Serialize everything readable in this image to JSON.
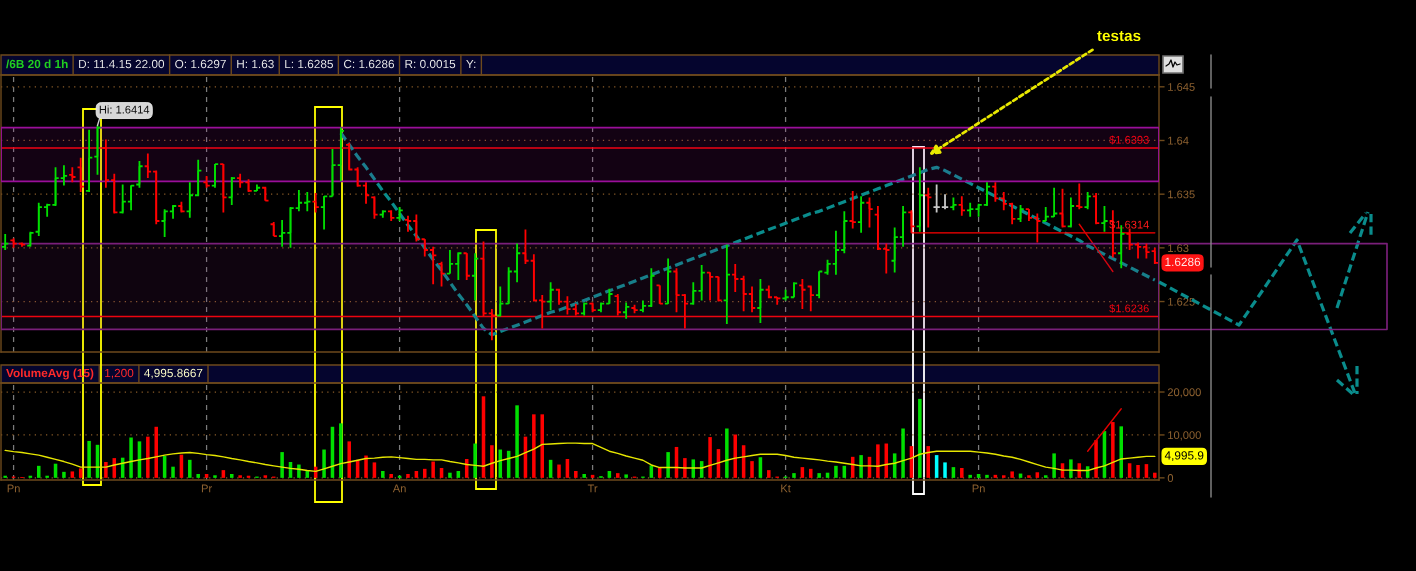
{
  "chart_data": [
    {
      "type": "candlestick",
      "title": "/6B 20 d 1h",
      "annotations": [
        "D: 11.4.15 22.00",
        "O: 1.6297",
        "H: 1.63",
        "L: 1.6285",
        "C: 1.6286",
        "R: 0.0015",
        "Y:",
        {
          "text": "Hi: 1.6414",
          "y": 1.6414
        },
        "1.6286",
        {
          "text": "$1.6314",
          "y": 1.6314
        },
        "testas"
      ],
      "categories": [
        null,
        null,
        null,
        null,
        null,
        null,
        null,
        null,
        null,
        null,
        null,
        null,
        null,
        null,
        null,
        null,
        null,
        null,
        null,
        null,
        null,
        null,
        null,
        null,
        null,
        null,
        null,
        null,
        null,
        null,
        null,
        null,
        null,
        null,
        null,
        null,
        null,
        null,
        null,
        null,
        null,
        null,
        null,
        null,
        null,
        null,
        null,
        null,
        null,
        null,
        null,
        null,
        null,
        null,
        null,
        null,
        null,
        null,
        null,
        null,
        null,
        null,
        null,
        null,
        null,
        null,
        null,
        null,
        null,
        null,
        null,
        null,
        null,
        null,
        null,
        null,
        null,
        null,
        null,
        null,
        null,
        null,
        null,
        null,
        null,
        null,
        null,
        null,
        null,
        null,
        null,
        null,
        null,
        null,
        null,
        null,
        null,
        null,
        null,
        null,
        null,
        null,
        null,
        null,
        null,
        null,
        null,
        null,
        null,
        null,
        null,
        null,
        null,
        null,
        null,
        null,
        null,
        null,
        null,
        null,
        null,
        null,
        null,
        null,
        null,
        null,
        null,
        null,
        null,
        null,
        null,
        null,
        null,
        null,
        null,
        null,
        null,
        null
      ],
      "ohlc": [
        [
          1.6301,
          1.6313,
          1.6298,
          1.6304
        ],
        [
          1.6307,
          1.6309,
          1.63,
          1.6304
        ],
        [
          1.6304,
          1.6305,
          1.6301,
          1.6303
        ],
        [
          1.6302,
          1.6315,
          1.6301,
          1.6314
        ],
        [
          1.6315,
          1.6342,
          1.6311,
          1.6338
        ],
        [
          1.6338,
          1.6341,
          1.6329,
          1.634
        ],
        [
          1.634,
          1.6375,
          1.6339,
          1.6365
        ],
        [
          1.6365,
          1.6377,
          1.6358,
          1.6367
        ],
        [
          1.6368,
          1.6375,
          1.6361,
          1.6366
        ],
        [
          1.6375,
          1.6384,
          1.6352,
          1.6357
        ],
        [
          1.6353,
          1.641,
          1.6352,
          1.6384
        ],
        [
          1.6385,
          1.6414,
          1.6368,
          1.6412
        ],
        [
          1.6393,
          1.6401,
          1.6356,
          1.6363
        ],
        [
          1.6363,
          1.6369,
          1.6332,
          1.6333
        ],
        [
          1.6333,
          1.6359,
          1.6332,
          1.6343
        ],
        [
          1.6343,
          1.6358,
          1.6335,
          1.6358
        ],
        [
          1.6359,
          1.6381,
          1.6356,
          1.6376
        ],
        [
          1.6376,
          1.6388,
          1.6365,
          1.6371
        ],
        [
          1.6371,
          1.6372,
          1.6322,
          1.6325
        ],
        [
          1.6325,
          1.6336,
          1.631,
          1.6334
        ],
        [
          1.6334,
          1.634,
          1.6327,
          1.6339
        ],
        [
          1.6339,
          1.6343,
          1.6333,
          1.6334
        ],
        [
          1.6334,
          1.6361,
          1.6328,
          1.6349
        ],
        [
          1.6349,
          1.6382,
          1.6348,
          1.6372
        ],
        [
          1.6361,
          1.6367,
          1.6356,
          1.6358
        ],
        [
          1.6358,
          1.6378,
          1.6356,
          1.6378
        ],
        [
          1.6378,
          1.6378,
          1.6333,
          1.6347
        ],
        [
          1.6347,
          1.6366,
          1.634,
          1.6365
        ],
        [
          1.6365,
          1.6369,
          1.6356,
          1.6361
        ],
        [
          1.6361,
          1.6364,
          1.6352,
          1.6353
        ],
        [
          1.6353,
          1.6359,
          1.6353,
          1.6356
        ],
        [
          1.6356,
          1.6357,
          1.6344,
          1.6344
        ],
        [
          1.6322,
          1.6324,
          1.6311,
          1.6311
        ],
        [
          1.6311,
          1.6326,
          1.6301,
          1.6314
        ],
        [
          1.6314,
          1.6338,
          1.63,
          1.6337
        ],
        [
          1.6337,
          1.6354,
          1.6334,
          1.6342
        ],
        [
          1.6342,
          1.6352,
          1.6334,
          1.6343
        ],
        [
          1.6343,
          1.6351,
          1.6333,
          1.6338
        ],
        [
          1.6338,
          1.6348,
          1.6317,
          1.6348
        ],
        [
          1.6348,
          1.6392,
          1.6348,
          1.6377
        ],
        [
          1.6377,
          1.6412,
          1.6362,
          1.6409
        ],
        [
          1.6396,
          1.6398,
          1.6372,
          1.6373
        ],
        [
          1.6373,
          1.6375,
          1.6357,
          1.6358
        ],
        [
          1.6358,
          1.6361,
          1.6341,
          1.6349
        ],
        [
          1.6347,
          1.6348,
          1.6327,
          1.6331
        ],
        [
          1.6331,
          1.6335,
          1.6328,
          1.6334
        ],
        [
          1.6334,
          1.6335,
          1.6325,
          1.6328
        ],
        [
          1.6328,
          1.6338,
          1.6325,
          1.6335
        ],
        [
          1.6326,
          1.633,
          1.6315,
          1.6325
        ],
        [
          1.6325,
          1.6331,
          1.6306,
          1.6308
        ],
        [
          1.6308,
          1.6308,
          1.6292,
          1.6298
        ],
        [
          1.6298,
          1.6301,
          1.6266,
          1.6293
        ],
        [
          1.6285,
          1.6287,
          1.6264,
          1.6276
        ],
        [
          1.6276,
          1.6298,
          1.6276,
          1.6285
        ],
        [
          1.6285,
          1.6296,
          1.627,
          1.6295
        ],
        [
          1.6295,
          1.6295,
          1.627,
          1.6274
        ],
        [
          1.6274,
          1.6295,
          1.6251,
          1.629
        ],
        [
          1.629,
          1.6306,
          1.6236,
          1.6239
        ],
        [
          1.6239,
          1.6243,
          1.6214,
          1.6237
        ],
        [
          1.6237,
          1.6264,
          1.6236,
          1.6248
        ],
        [
          1.6248,
          1.6282,
          1.6248,
          1.6278
        ],
        [
          1.6278,
          1.6304,
          1.6268,
          1.6295
        ],
        [
          1.6295,
          1.6317,
          1.6285,
          1.6288
        ],
        [
          1.6288,
          1.6294,
          1.625,
          1.6251
        ],
        [
          1.6251,
          1.6256,
          1.6225,
          1.625
        ],
        [
          1.625,
          1.6268,
          1.6242,
          1.6261
        ],
        [
          1.6261,
          1.6262,
          1.6247,
          1.625
        ],
        [
          1.625,
          1.6255,
          1.6238,
          1.6243
        ],
        [
          1.6243,
          1.6248,
          1.6237,
          1.6239
        ],
        [
          1.6239,
          1.6249,
          1.6237,
          1.6248
        ],
        [
          1.6248,
          1.6249,
          1.624,
          1.6242
        ],
        [
          1.6242,
          1.6249,
          1.624,
          1.6248
        ],
        [
          1.6248,
          1.6262,
          1.6248,
          1.6257
        ],
        [
          1.6255,
          1.6257,
          1.6237,
          1.624
        ],
        [
          1.624,
          1.6249,
          1.6234,
          1.6245
        ],
        [
          1.6244,
          1.6247,
          1.6239,
          1.6242
        ],
        [
          1.6242,
          1.6251,
          1.624,
          1.6246
        ],
        [
          1.6246,
          1.6281,
          1.6245,
          1.6274
        ],
        [
          1.6265,
          1.6265,
          1.6248,
          1.6248
        ],
        [
          1.6248,
          1.629,
          1.6248,
          1.6278
        ],
        [
          1.6278,
          1.6281,
          1.624,
          1.6256
        ],
        [
          1.6256,
          1.6257,
          1.6225,
          1.6248
        ],
        [
          1.6248,
          1.6268,
          1.6247,
          1.626
        ],
        [
          1.626,
          1.6284,
          1.6251,
          1.6277
        ],
        [
          1.6277,
          1.6277,
          1.6251,
          1.6273
        ],
        [
          1.6273,
          1.6273,
          1.625,
          1.6251
        ],
        [
          1.6251,
          1.6303,
          1.6229,
          1.6275
        ],
        [
          1.6275,
          1.6285,
          1.6259,
          1.6271
        ],
        [
          1.6271,
          1.6274,
          1.6241,
          1.6257
        ],
        [
          1.6257,
          1.6264,
          1.624,
          1.6244
        ],
        [
          1.6244,
          1.6271,
          1.623,
          1.6261
        ],
        [
          1.6261,
          1.6265,
          1.6253,
          1.6254
        ],
        [
          1.6254,
          1.6254,
          1.6247,
          1.6253
        ],
        [
          1.6253,
          1.6261,
          1.6251,
          1.6254
        ],
        [
          1.6254,
          1.6268,
          1.6254,
          1.6267
        ],
        [
          1.6265,
          1.6271,
          1.6243,
          1.6261
        ],
        [
          1.6264,
          1.6265,
          1.6241,
          1.6256
        ],
        [
          1.6256,
          1.6278,
          1.6253,
          1.6278
        ],
        [
          1.6277,
          1.6289,
          1.6275,
          1.6285
        ],
        [
          1.6285,
          1.6316,
          1.6275,
          1.6298
        ],
        [
          1.6298,
          1.6334,
          1.6295,
          1.6325
        ],
        [
          1.6325,
          1.6353,
          1.6318,
          1.6324
        ],
        [
          1.6324,
          1.6348,
          1.6314,
          1.6342
        ],
        [
          1.6342,
          1.6347,
          1.6319,
          1.6336
        ],
        [
          1.6331,
          1.6339,
          1.6298,
          1.6299
        ],
        [
          1.6299,
          1.6304,
          1.6276,
          1.6298
        ],
        [
          1.6288,
          1.6319,
          1.6277,
          1.631
        ],
        [
          1.631,
          1.6339,
          1.6301,
          1.6333
        ],
        [
          1.6333,
          1.6335,
          1.6314,
          1.632
        ],
        [
          1.632,
          1.6375,
          1.6315,
          1.6349
        ],
        [
          1.6349,
          1.6356,
          1.6319,
          1.6347
        ],
        [
          1.6338,
          1.6359,
          1.6333,
          1.6338
        ],
        [
          1.6338,
          1.635,
          1.6336,
          1.6338
        ],
        [
          1.6338,
          1.6347,
          1.6335,
          1.634
        ],
        [
          1.634,
          1.6348,
          1.633,
          1.6335
        ],
        [
          1.6335,
          1.6342,
          1.6329,
          1.6336
        ],
        [
          1.6336,
          1.6341,
          1.6329,
          1.634
        ],
        [
          1.634,
          1.6361,
          1.6339,
          1.6357
        ],
        [
          1.6357,
          1.6361,
          1.6343,
          1.6346
        ],
        [
          1.6346,
          1.6352,
          1.6335,
          1.6341
        ],
        [
          1.6341,
          1.6342,
          1.6322,
          1.6327
        ],
        [
          1.6327,
          1.634,
          1.6324,
          1.6336
        ],
        [
          1.6336,
          1.6336,
          1.6325,
          1.6328
        ],
        [
          1.6328,
          1.6332,
          1.6305,
          1.6325
        ],
        [
          1.6325,
          1.6338,
          1.6325,
          1.6329
        ],
        [
          1.6329,
          1.6356,
          1.6329,
          1.6332
        ],
        [
          1.6332,
          1.6355,
          1.6319,
          1.632
        ],
        [
          1.632,
          1.6347,
          1.6319,
          1.6339
        ],
        [
          1.6339,
          1.636,
          1.6336,
          1.6338
        ],
        [
          1.6338,
          1.6352,
          1.6336,
          1.6348
        ],
        [
          1.6348,
          1.6351,
          1.6322,
          1.6323
        ],
        [
          1.6323,
          1.6339,
          1.6315,
          1.6325
        ],
        [
          1.6325,
          1.6335,
          1.6291,
          1.6295
        ],
        [
          1.6295,
          1.6321,
          1.6281,
          1.6313
        ],
        [
          1.6313,
          1.6318,
          1.6298,
          1.6303
        ],
        [
          1.6303,
          1.6305,
          1.629,
          1.6301
        ],
        [
          1.6301,
          1.6304,
          1.629,
          1.6296
        ],
        [
          1.6297,
          1.63,
          1.6285,
          1.6286
        ]
      ],
      "colors": [
        "#00e000",
        "#ff0000",
        "#ff0000",
        "#00e000",
        "#00e000",
        "#00e000",
        "#00e000",
        "#00e000",
        "#ff0000",
        "#ff0000",
        "#00e000",
        "#00e000",
        "#ff0000",
        "#ff0000",
        "#00e000",
        "#00e000",
        "#00e000",
        "#ff0000",
        "#ff0000",
        "#00e000",
        "#00e000",
        "#ff0000",
        "#00e000",
        "#00e000",
        "#ff0000",
        "#00e000",
        "#ff0000",
        "#00e000",
        "#ff0000",
        "#ff0000",
        "#00e000",
        "#ff0000",
        "#ff0000",
        "#00e000",
        "#00e000",
        "#00e000",
        "#00e000",
        "#ff0000",
        "#00e000",
        "#00e000",
        "#00e000",
        "#ff0000",
        "#ff0000",
        "#ff0000",
        "#ff0000",
        "#00e000",
        "#ff0000",
        "#00e000",
        "#ff0000",
        "#ff0000",
        "#ff0000",
        "#ff0000",
        "#ff0000",
        "#00e000",
        "#00e000",
        "#ff0000",
        "#00e000",
        "#ff0000",
        "#ff0000",
        "#00e000",
        "#00e000",
        "#00e000",
        "#ff0000",
        "#ff0000",
        "#ff0000",
        "#00e000",
        "#ff0000",
        "#ff0000",
        "#ff0000",
        "#00e000",
        "#ff0000",
        "#00e000",
        "#00e000",
        "#ff0000",
        "#00e000",
        "#ff0000",
        "#00e000",
        "#00e000",
        "#ff0000",
        "#00e000",
        "#ff0000",
        "#ff0000",
        "#00e000",
        "#00e000",
        "#ff0000",
        "#ff0000",
        "#00e000",
        "#ff0000",
        "#ff0000",
        "#ff0000",
        "#00e000",
        "#ff0000",
        "#ff0000",
        "#00e000",
        "#00e000",
        "#ff0000",
        "#ff0000",
        "#00e000",
        "#00e000",
        "#00e000",
        "#00e000",
        "#ff0000",
        "#00e000",
        "#ff0000",
        "#ff0000",
        "#ff0000",
        "#00e000",
        "#00e000",
        "#ff0000",
        "#00e000",
        "#ff0000",
        "#c8c8c8",
        "#c8c8c8",
        "#00e000",
        "#ff0000",
        "#00e000",
        "#00e000",
        "#00e000",
        "#ff0000",
        "#ff0000",
        "#ff0000",
        "#00e000",
        "#ff0000",
        "#ff0000",
        "#00e000",
        "#00e000",
        "#ff0000",
        "#00e000",
        "#ff0000",
        "#00e000",
        "#ff0000",
        "#00e000",
        "#ff0000",
        "#00e000",
        "#ff0000",
        "#ff0000",
        "#ff0000",
        "#ff0000"
      ],
      "series": [
        {
          "type": "line",
          "color": "#0a8c8c",
          "line_style": "dashed",
          "values": [
            null,
            null,
            null,
            null,
            null,
            null,
            null,
            null,
            null,
            null,
            null,
            null,
            null,
            null,
            null,
            null,
            null,
            null,
            null,
            null,
            null,
            null,
            null,
            null,
            null,
            null,
            null,
            null,
            null,
            null,
            null,
            null,
            null,
            null,
            null,
            null,
            null,
            null,
            null,
            null,
            1.6407,
            1.6396,
            1.6385,
            1.6375,
            1.6364,
            1.6353,
            1.6343,
            1.6332,
            1.6321,
            1.6311,
            1.63,
            1.6289,
            1.6279,
            1.6268,
            1.6257,
            1.6247,
            1.6236,
            1.6225,
            1.6219,
            1.6222,
            1.6225,
            1.6228,
            1.6231,
            1.6234,
            1.6237,
            1.624,
            1.6242,
            1.6245,
            1.6248,
            1.6251,
            1.6254,
            1.6257,
            1.626,
            1.6263,
            1.6266,
            1.6269,
            1.6272,
            1.6275,
            1.6278,
            1.6281,
            1.6284,
            1.6287,
            1.629,
            1.6293,
            1.6296,
            1.6299,
            1.6302,
            1.6305,
            1.6308,
            1.6311,
            1.6314,
            1.6317,
            1.632,
            1.6323,
            1.6326,
            1.6329,
            1.6332,
            1.6334,
            1.6337,
            1.634,
            1.6343,
            1.6346,
            1.6349,
            1.6352,
            1.6355,
            1.6358,
            1.6361,
            1.6364,
            1.6367,
            1.637,
            1.6373,
            1.6375,
            1.6372,
            1.6368,
            1.6364,
            1.636,
            1.6356,
            1.6352,
            1.6348,
            1.6344,
            1.6339,
            1.6335,
            1.6331,
            1.6327,
            1.6323,
            1.6319,
            1.6315,
            1.6311,
            1.6307,
            1.6302,
            1.6298,
            1.6294,
            1.629,
            1.6286,
            1.6282,
            1.6278,
            1.6274,
            1.627
          ]
        },
        {
          "type": "line",
          "color": "#ff0000",
          "values": [
            null,
            null,
            null,
            null,
            null,
            null,
            null,
            null,
            null,
            null,
            null,
            null,
            null,
            null,
            null,
            null,
            null,
            null,
            null,
            null,
            null,
            null,
            null,
            null,
            null,
            null,
            null,
            null,
            null,
            null,
            null,
            null,
            null,
            null,
            null,
            null,
            null,
            null,
            null,
            null,
            null,
            null,
            null,
            null,
            null,
            null,
            null,
            null,
            null,
            null,
            null,
            null,
            null,
            null,
            null,
            null,
            null,
            null,
            null,
            null,
            null,
            null,
            null,
            null,
            null,
            null,
            null,
            null,
            null,
            null,
            null,
            null,
            null,
            null,
            null,
            null,
            null,
            null,
            null,
            null,
            null,
            null,
            null,
            null,
            null,
            null,
            null,
            null,
            null,
            null,
            null,
            null,
            null,
            null,
            null,
            null,
            null,
            null,
            null,
            null,
            null,
            null,
            null,
            null,
            null,
            null,
            null,
            null,
            1.6314,
            1.6314,
            1.6314,
            1.6314,
            1.6314,
            1.6314,
            1.6314,
            1.6314,
            1.6314,
            1.6314,
            1.6314,
            1.6314,
            1.6314,
            1.6314,
            1.6314,
            1.6314,
            1.6314,
            1.6314,
            1.6314,
            1.6314,
            1.6314,
            1.6314,
            1.6314,
            1.6314,
            1.6314,
            1.6314,
            1.6314,
            1.6314,
            1.6314,
            1.6314
          ]
        },
        {
          "type": "line",
          "color": "#e00000",
          "values": [
            null,
            null,
            null,
            null,
            null,
            null,
            null,
            null,
            null,
            null,
            null,
            null,
            null,
            null,
            null,
            null,
            null,
            null,
            null,
            null,
            null,
            null,
            null,
            null,
            null,
            null,
            null,
            null,
            null,
            null,
            null,
            null,
            null,
            null,
            null,
            null,
            null,
            null,
            null,
            null,
            null,
            null,
            null,
            null,
            null,
            null,
            null,
            null,
            null,
            null,
            null,
            null,
            null,
            null,
            null,
            null,
            null,
            null,
            null,
            null,
            null,
            null,
            null,
            null,
            null,
            null,
            null,
            null,
            null,
            null,
            null,
            null,
            null,
            null,
            null,
            null,
            null,
            null,
            null,
            null,
            null,
            null,
            null,
            null,
            null,
            null,
            null,
            null,
            null,
            null,
            null,
            null,
            null,
            null,
            null,
            null,
            null,
            null,
            null,
            null,
            null,
            null,
            null,
            null,
            null,
            null,
            null,
            null,
            null,
            null,
            null,
            null,
            null,
            null,
            null,
            null,
            null,
            null,
            null,
            null,
            null,
            null,
            null,
            null,
            null,
            null,
            null,
            null,
            1.6322,
            1.6311,
            1.63,
            1.6289,
            1.6278,
            null,
            null,
            null,
            null,
            null
          ]
        }
      ],
      "ref_lines": [
        {
          "axis": "y",
          "value": 1.6393,
          "label": "$1.6393",
          "color": "#ff0000"
        },
        {
          "axis": "y",
          "value": 1.6236,
          "label": "$1.6236",
          "color": "#ff0000"
        }
      ],
      "bands": [
        {
          "axis": "y",
          "from": 1.6362,
          "to": 1.6412,
          "color": "#9a0f9a"
        },
        {
          "axis": "y",
          "from": 1.6224,
          "to": 1.6304,
          "color": "#7a1f7a"
        }
      ],
      "ylim": [
        1.6203,
        1.6461
      ],
      "yticks": [
        1.625,
        1.63,
        1.635,
        1.64,
        1.645
      ],
      "grid": true
    },
    {
      "type": "bar",
      "title": "VolumeAvg (15)",
      "annotations": [
        "1,200",
        "4,995.8667",
        "4,995.9"
      ],
      "categories": [
        null,
        "Pn",
        null,
        null,
        null,
        null,
        null,
        null,
        null,
        null,
        null,
        null,
        null,
        null,
        null,
        null,
        null,
        null,
        null,
        null,
        null,
        null,
        null,
        null,
        "Pr",
        null,
        null,
        null,
        null,
        null,
        null,
        null,
        null,
        null,
        null,
        null,
        null,
        null,
        null,
        null,
        null,
        null,
        null,
        null,
        null,
        null,
        null,
        "An",
        null,
        null,
        null,
        null,
        null,
        null,
        null,
        null,
        null,
        null,
        null,
        null,
        null,
        null,
        null,
        null,
        null,
        null,
        null,
        null,
        null,
        null,
        "Tr",
        null,
        null,
        null,
        null,
        null,
        null,
        null,
        null,
        null,
        null,
        null,
        null,
        null,
        null,
        null,
        null,
        null,
        null,
        null,
        null,
        null,
        null,
        "Kt",
        null,
        null,
        null,
        null,
        null,
        null,
        null,
        null,
        null,
        null,
        null,
        null,
        null,
        null,
        null,
        null,
        null,
        null,
        null,
        null,
        null,
        null,
        "Pn",
        null,
        null,
        null,
        null,
        null,
        null,
        null,
        null,
        null,
        null,
        null,
        null,
        null,
        null,
        null,
        null,
        null,
        null,
        null,
        null,
        null
      ],
      "series": [
        {
          "values": [
            500,
            300,
            200,
            500,
            2800,
            500,
            3300,
            1400,
            1500,
            2200,
            8600,
            7700,
            3700,
            4600,
            4700,
            9400,
            8500,
            9600,
            11900,
            5100,
            2600,
            5400,
            4200,
            900,
            900,
            600,
            1800,
            900,
            600,
            500,
            300,
            600,
            300,
            6000,
            3700,
            3100,
            1700,
            2600,
            6600,
            11900,
            12700,
            8500,
            4200,
            5200,
            3600,
            1600,
            900,
            500,
            900,
            1600,
            2100,
            3800,
            2300,
            1200,
            1600,
            4400,
            8000,
            19000,
            7600,
            6600,
            6300,
            16900,
            9600,
            14800,
            14800,
            4200,
            3100,
            4400,
            1600,
            900,
            700,
            400,
            1600,
            1100,
            800,
            300,
            300,
            2900,
            2300,
            6000,
            7200,
            4600,
            4300,
            3900,
            9500,
            6700,
            11500,
            10100,
            7600,
            3900,
            4800,
            1800,
            300,
            300,
            1100,
            2500,
            2100,
            1100,
            1200,
            2800,
            2800,
            4900,
            5300,
            4900,
            7800,
            8000,
            5700,
            11500,
            7400,
            18400,
            7400,
            5300,
            3600,
            2500,
            2300,
            700,
            900,
            700,
            700,
            600,
            1500,
            1000,
            600,
            1300,
            600,
            5700,
            3400,
            4300,
            3400,
            2700,
            8800,
            10900,
            13000,
            12000,
            3400,
            3000,
            3200,
            1200
          ],
          "colors": [
            "#00e000",
            "#ff0000",
            "#ff0000",
            "#00e000",
            "#00e000",
            "#00e000",
            "#00e000",
            "#00e000",
            "#ff0000",
            "#ff0000",
            "#00e000",
            "#00e000",
            "#ff0000",
            "#ff0000",
            "#00e000",
            "#00e000",
            "#00e000",
            "#ff0000",
            "#ff0000",
            "#00e000",
            "#00e000",
            "#ff0000",
            "#00e000",
            "#00e000",
            "#ff0000",
            "#00e000",
            "#ff0000",
            "#00e000",
            "#ff0000",
            "#ff0000",
            "#00e000",
            "#ff0000",
            "#ff0000",
            "#00e000",
            "#00e000",
            "#00e000",
            "#00e000",
            "#ff0000",
            "#00e000",
            "#00e000",
            "#00e000",
            "#ff0000",
            "#ff0000",
            "#ff0000",
            "#ff0000",
            "#00e000",
            "#ff0000",
            "#00e000",
            "#ff0000",
            "#ff0000",
            "#ff0000",
            "#ff0000",
            "#ff0000",
            "#00e000",
            "#00e000",
            "#ff0000",
            "#00e000",
            "#ff0000",
            "#ff0000",
            "#00e000",
            "#00e000",
            "#00e000",
            "#ff0000",
            "#ff0000",
            "#ff0000",
            "#00e000",
            "#ff0000",
            "#ff0000",
            "#ff0000",
            "#00e000",
            "#ff0000",
            "#00e000",
            "#00e000",
            "#ff0000",
            "#00e000",
            "#ff0000",
            "#00e000",
            "#00e000",
            "#ff0000",
            "#00e000",
            "#ff0000",
            "#ff0000",
            "#00e000",
            "#00e000",
            "#ff0000",
            "#ff0000",
            "#00e000",
            "#ff0000",
            "#ff0000",
            "#ff0000",
            "#00e000",
            "#ff0000",
            "#ff0000",
            "#00e000",
            "#00e000",
            "#ff0000",
            "#ff0000",
            "#00e000",
            "#00e000",
            "#00e000",
            "#00e000",
            "#ff0000",
            "#00e000",
            "#ff0000",
            "#ff0000",
            "#ff0000",
            "#00e000",
            "#00e000",
            "#ff0000",
            "#00e000",
            "#ff0000",
            "#00ffff",
            "#00ffff",
            "#00e000",
            "#ff0000",
            "#00e000",
            "#00e000",
            "#00e000",
            "#ff0000",
            "#ff0000",
            "#ff0000",
            "#00e000",
            "#ff0000",
            "#ff0000",
            "#00e000",
            "#00e000",
            "#ff0000",
            "#00e000",
            "#ff0000",
            "#00e000",
            "#ff0000",
            "#00e000",
            "#ff0000",
            "#00e000",
            "#ff0000",
            "#ff0000",
            "#ff0000",
            "#ff0000"
          ]
        },
        {
          "type": "line",
          "color": "#e6e600",
          "values": [
            6400,
            6100,
            5900,
            5600,
            5300,
            4800,
            4300,
            3800,
            3200,
            2500,
            2500,
            2500,
            2500,
            3000,
            3400,
            3800,
            4200,
            4500,
            4900,
            5300,
            5600,
            5800,
            5900,
            5700,
            5400,
            5200,
            4900,
            4500,
            4200,
            3800,
            3500,
            3100,
            2800,
            2500,
            2200,
            2000,
            1700,
            1500,
            2100,
            2700,
            3300,
            3700,
            4100,
            4500,
            4600,
            4800,
            4900,
            4700,
            4500,
            4300,
            4300,
            4200,
            4200,
            3800,
            3500,
            3100,
            2900,
            2700,
            3400,
            4000,
            4500,
            5000,
            5900,
            6700,
            7800,
            7900,
            8000,
            8100,
            8100,
            8000,
            8000,
            7100,
            6200,
            5700,
            5100,
            4600,
            4100,
            3000,
            2400,
            2400,
            2400,
            2300,
            2300,
            2300,
            2900,
            3500,
            4100,
            4600,
            4900,
            5200,
            5500,
            5500,
            5500,
            5200,
            4800,
            4600,
            4400,
            4200,
            3900,
            3700,
            3400,
            3100,
            2800,
            2800,
            2700,
            3100,
            3400,
            4000,
            4600,
            5500,
            5900,
            6200,
            6200,
            6200,
            6200,
            6200,
            6000,
            5800,
            5500,
            5100,
            4800,
            4300,
            3700,
            3100,
            2500,
            2200,
            1800,
            1800,
            1700,
            1700,
            2300,
            2800,
            3600,
            4400,
            4600,
            4800,
            5000,
            5000
          ]
        },
        {
          "type": "line",
          "color": "#e00000",
          "values": [
            null,
            null,
            null,
            null,
            null,
            null,
            null,
            null,
            null,
            null,
            null,
            null,
            null,
            null,
            null,
            null,
            null,
            null,
            null,
            null,
            null,
            null,
            null,
            null,
            null,
            null,
            null,
            null,
            null,
            null,
            null,
            null,
            null,
            null,
            null,
            null,
            null,
            null,
            null,
            null,
            null,
            null,
            null,
            null,
            null,
            null,
            null,
            null,
            null,
            null,
            null,
            null,
            null,
            null,
            null,
            null,
            null,
            null,
            null,
            null,
            null,
            null,
            null,
            null,
            null,
            null,
            null,
            null,
            null,
            null,
            null,
            null,
            null,
            null,
            null,
            null,
            null,
            null,
            null,
            null,
            null,
            null,
            null,
            null,
            null,
            null,
            null,
            null,
            null,
            null,
            null,
            null,
            null,
            null,
            null,
            null,
            null,
            null,
            null,
            null,
            null,
            null,
            null,
            null,
            null,
            null,
            null,
            null,
            null,
            null,
            null,
            null,
            null,
            null,
            null,
            null,
            null,
            null,
            null,
            null,
            null,
            null,
            null,
            null,
            null,
            null,
            null,
            null,
            null,
            6200,
            8700,
            11100,
            13600,
            16100,
            null,
            null,
            null,
            null
          ]
        }
      ],
      "ylim": [
        -500,
        22100
      ],
      "yticks": [
        0,
        {
          "value": 10000,
          "label": "10,000"
        },
        {
          "value": 20000,
          "label": "20,000"
        }
      ],
      "grid": true
    }
  ]
}
